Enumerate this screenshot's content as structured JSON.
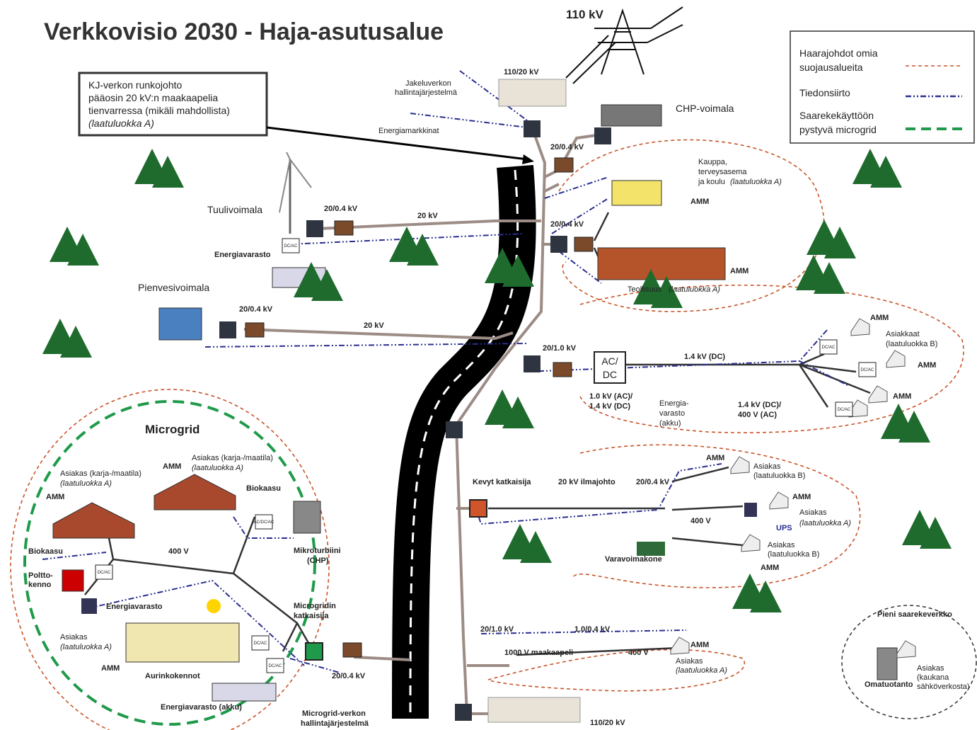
{
  "title": "Verkkovisio 2030 - Haja-asutusalue",
  "callout": [
    "KJ-verkon runkojohto",
    "pääosin 20 kV:n maakaapelia",
    "tienvarressa (mikäli mahdollista)",
    "(laatuluokka A)"
  ],
  "legend": [
    {
      "label": [
        "Haarajohdot omia",
        "suojausalueita"
      ]
    },
    {
      "label": [
        "Tiedonsiirto"
      ]
    },
    {
      "label": [
        "Saarekekäyttöön",
        "pystyvä microgrid"
      ]
    }
  ],
  "labels": [
    "110 kV",
    "110/20 kV",
    "Jakeluverkon",
    "hallintajärjestelmä",
    "Energiamarkkinat",
    "CHP-voimala",
    "20/0.4 kV",
    "Kauppa,",
    "terveysasema",
    "ja koulu",
    "(laatuluokka A)",
    "AMM",
    "Tuulivoimala",
    "20/0.4 kV",
    "20 kV",
    "20/0.4 kV",
    "Energiavarasto",
    "AMM",
    "Pienvesivoimala",
    "Teollisuus",
    "(laatuluokka A)",
    "20/0.4 kV",
    "20 kV",
    "20/1.0 kV",
    "1.4 kV (DC)",
    "AMM",
    "Asiakkaat",
    "(laatuluokka B)",
    "AMM",
    "1.0 kV (AC)/",
    "1.4 kV (DC)",
    "Energia-",
    "varasto",
    "(akku)",
    "1.4 kV (DC)/",
    "400 V (AC)",
    "AMM",
    "Microgrid",
    "Kevyt katkaisija",
    "20 kV ilmajohto",
    "20/0.4 kV",
    "AMM",
    "Asiakas",
    "(laatuluokka B)",
    "AMM",
    "Asiakas",
    "(laatuluokka A)",
    "UPS",
    "400 V",
    "Asiakas",
    "(laatuluokka B)",
    "AMM",
    "Varavoimakone",
    "AMM",
    "Asiakas (karja-/maatila)",
    "(laatuluokka A)",
    "Asiakas (karja-/maatila)",
    "(laatuluokka A)",
    "AMM",
    "Biokaasu",
    "Mikroturbiini",
    "(CHP)",
    "400 V",
    "Biokaasu",
    "Poltto-",
    "kenno",
    "Energiavarasto",
    "Microgridin",
    "katkaisija",
    "Asiakas",
    "(laatuluokka A)",
    "AMM",
    "Aurinkokennot",
    "20/0.4 kV",
    "Energiavarasto (akku)",
    "Microgrid-verkon",
    "hallintajärjestelmä",
    "20/1.0 kV",
    "1.0/0.4 kV",
    "1000 V maakaapeli",
    "400 V",
    "AMM",
    "Asiakas",
    "(laatuluokka A)",
    "110/20 kV",
    "Pieni saarekeverkko",
    "Asiakas",
    "(kaukana",
    "sähköverkosta)",
    "Omatuotanto"
  ],
  "acdc": [
    "AC/",
    "DC"
  ],
  "converters": [
    "DC/AC",
    "DC/AC",
    "DC/AC",
    "DC/AC",
    "AC/DC/AC",
    "DC/AC",
    "DC/AC",
    "DC/AC"
  ]
}
